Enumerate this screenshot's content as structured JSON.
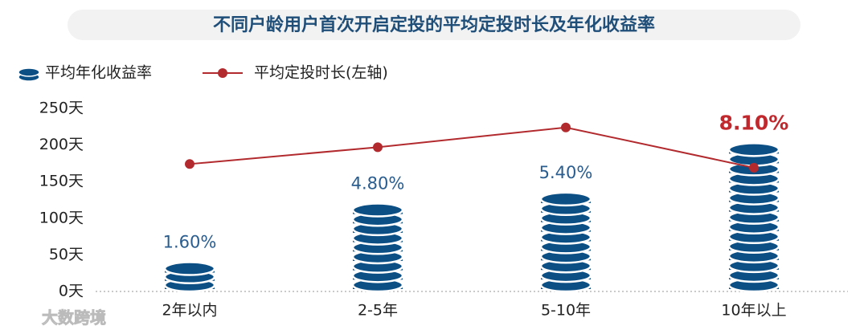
{
  "chart_data": {
    "type": "coin-bar-line",
    "title": "不同户龄用户首次开启定投的平均定投时长及年化收益率",
    "categories": [
      "2年以内",
      "2-5年",
      "5-10年",
      "10年以上"
    ],
    "series": [
      {
        "name": "平均年化收益率",
        "type": "coin-bar",
        "axis": "y2",
        "color": "#0b4f85",
        "values": [
          1.6,
          4.8,
          5.4,
          8.1
        ],
        "value_labels": [
          "1.60%",
          "4.80%",
          "5.40%",
          "8.10%"
        ]
      },
      {
        "name": "平均定投时长(左轴)",
        "type": "line",
        "color": "#b22a2e",
        "values": [
          174,
          197,
          224,
          169
        ]
      }
    ],
    "highlight": {
      "index": 3,
      "color": "#c0282d"
    },
    "ylim": [
      0,
      250
    ],
    "yticks": [
      {
        "value": 0,
        "label": "0天"
      },
      {
        "value": 50,
        "label": "50天"
      },
      {
        "value": 100,
        "label": "100天"
      },
      {
        "value": 150,
        "label": "150天"
      },
      {
        "value": 200,
        "label": "200天"
      },
      {
        "value": 250,
        "label": "250天"
      }
    ],
    "y2lim": [
      0,
      10
    ],
    "watermark": "大数跨境"
  }
}
